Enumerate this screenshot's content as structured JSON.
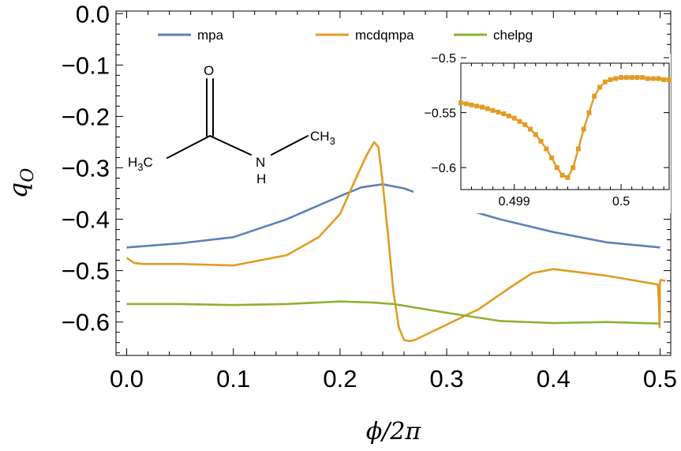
{
  "chart_data": [
    {
      "type": "line",
      "xlabel": "ϕ/2π",
      "ylabel": "q_O",
      "xlim": [
        -0.01,
        0.51
      ],
      "ylim": [
        -0.665,
        0.005
      ],
      "x_ticks": [
        0.0,
        0.1,
        0.2,
        0.3,
        0.4,
        0.5
      ],
      "x_tick_labels": [
        "0.0",
        "0.1",
        "0.2",
        "0.3",
        "0.4",
        "0.5"
      ],
      "y_ticks": [
        0.0,
        -0.1,
        -0.2,
        -0.3,
        -0.4,
        -0.5,
        -0.6
      ],
      "y_tick_labels": [
        "0.0",
        "−0.1",
        "−0.2",
        "−0.3",
        "−0.4",
        "−0.5",
        "−0.6"
      ],
      "legend_placement": "top",
      "grid": false,
      "series": [
        {
          "name": "mpa",
          "color": "#5e81b5",
          "x": [
            0.0,
            0.05,
            0.1,
            0.15,
            0.2,
            0.22,
            0.24,
            0.26,
            0.3,
            0.35,
            0.4,
            0.45,
            0.5
          ],
          "y": [
            -0.455,
            -0.447,
            -0.435,
            -0.4,
            -0.355,
            -0.338,
            -0.332,
            -0.34,
            -0.37,
            -0.4,
            -0.425,
            -0.445,
            -0.455
          ]
        },
        {
          "name": "mcdqmpa",
          "color": "#e19c24",
          "x": [
            0.0,
            0.007,
            0.015,
            0.05,
            0.1,
            0.15,
            0.18,
            0.2,
            0.215,
            0.225,
            0.232,
            0.236,
            0.24,
            0.245,
            0.25,
            0.255,
            0.26,
            0.265,
            0.27,
            0.3,
            0.33,
            0.36,
            0.38,
            0.4,
            0.45,
            0.498,
            0.4985,
            0.499,
            0.4993,
            0.4995,
            0.4997,
            0.4999,
            0.5,
            0.5005,
            0.505
          ],
          "y": [
            -0.475,
            -0.485,
            -0.487,
            -0.487,
            -0.49,
            -0.47,
            -0.435,
            -0.39,
            -0.32,
            -0.275,
            -0.25,
            -0.26,
            -0.33,
            -0.43,
            -0.54,
            -0.61,
            -0.635,
            -0.637,
            -0.635,
            -0.605,
            -0.575,
            -0.532,
            -0.505,
            -0.497,
            -0.51,
            -0.527,
            -0.55,
            -0.565,
            -0.585,
            -0.61,
            -0.59,
            -0.53,
            -0.52,
            -0.518,
            -0.52
          ]
        },
        {
          "name": "chelpg",
          "color": "#8fb131",
          "x": [
            0.0,
            0.05,
            0.1,
            0.15,
            0.2,
            0.23,
            0.25,
            0.3,
            0.35,
            0.4,
            0.45,
            0.5
          ],
          "y": [
            -0.565,
            -0.565,
            -0.567,
            -0.565,
            -0.56,
            -0.562,
            -0.565,
            -0.582,
            -0.598,
            -0.602,
            -0.6,
            -0.603
          ]
        }
      ]
    },
    {
      "type": "line",
      "xlim": [
        0.4985,
        0.50045
      ],
      "ylim": [
        -0.62,
        -0.505
      ],
      "x_ticks": [
        0.499,
        0.5
      ],
      "x_tick_labels": [
        "0.499",
        "0.5"
      ],
      "y_ticks": [
        -0.5,
        -0.55,
        -0.6
      ],
      "y_tick_labels": [
        "−0.5",
        "−0.55",
        "−0.6"
      ],
      "markers": "square",
      "series": [
        {
          "name": "mcdqmpa",
          "color": "#e19c24",
          "x": [
            0.4985,
            0.49855,
            0.4986,
            0.49865,
            0.4987,
            0.49875,
            0.4988,
            0.49885,
            0.4989,
            0.49895,
            0.499,
            0.49905,
            0.4991,
            0.49915,
            0.4992,
            0.49925,
            0.4993,
            0.49935,
            0.4994,
            0.49945,
            0.4995,
            0.49955,
            0.4996,
            0.49965,
            0.4997,
            0.49975,
            0.4998,
            0.49985,
            0.4999,
            0.49995,
            0.5,
            0.50005,
            0.5001,
            0.50015,
            0.5002,
            0.50025,
            0.5003,
            0.50035,
            0.5004,
            0.50045
          ],
          "y": [
            -0.541,
            -0.542,
            -0.543,
            -0.544,
            -0.545,
            -0.5465,
            -0.548,
            -0.5495,
            -0.551,
            -0.553,
            -0.555,
            -0.558,
            -0.561,
            -0.565,
            -0.57,
            -0.576,
            -0.583,
            -0.591,
            -0.6,
            -0.607,
            -0.609,
            -0.6,
            -0.583,
            -0.565,
            -0.55,
            -0.535,
            -0.527,
            -0.522,
            -0.52,
            -0.519,
            -0.518,
            -0.518,
            -0.518,
            -0.518,
            -0.518,
            -0.519,
            -0.519,
            -0.519,
            -0.52,
            -0.52
          ]
        }
      ]
    }
  ],
  "molecule": {
    "atoms": {
      "o": "O",
      "n": "N",
      "h": "H",
      "ch3_right_c": "CH",
      "ch3_right_sub": "3",
      "ch3_left_h": "H",
      "ch3_left_sub": "3",
      "ch3_left_c": "C"
    }
  }
}
